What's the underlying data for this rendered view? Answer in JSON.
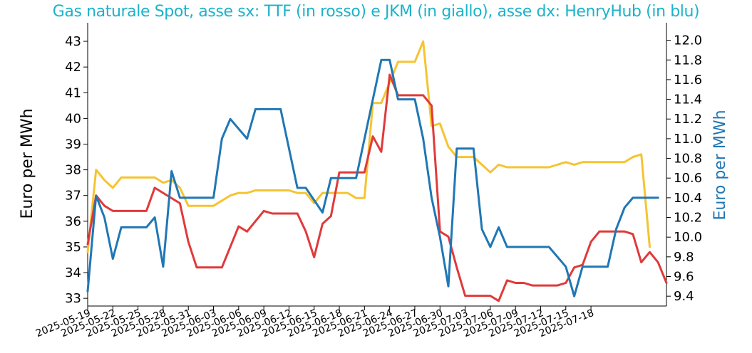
{
  "chart_data": {
    "type": "line",
    "title": "Gas naturale Spot, asse sx: TTF (in rosso) e JKM (in giallo), asse dx: HenryHub (in blu)",
    "ylabel_left": "Euro per MWh",
    "ylabel_right": "Euro per MWh",
    "ylim_left": [
      32.7,
      43.5
    ],
    "ylim_right": [
      9.3,
      12.12
    ],
    "yticks_left": [
      33,
      34,
      35,
      36,
      37,
      38,
      39,
      40,
      41,
      42,
      43
    ],
    "yticks_right": [
      "9.4",
      "9.6",
      "9.8",
      "10.0",
      "10.2",
      "10.4",
      "10.6",
      "10.8",
      "11.0",
      "11.2",
      "11.4",
      "11.6",
      "11.8",
      "12.0"
    ],
    "xticks": [
      "2025-05-19",
      "2025-05-22",
      "2025-05-25",
      "2025-05-28",
      "2025-05-31",
      "2025-06-03",
      "2025-06-06",
      "2025-06-09",
      "2025-06-12",
      "2025-06-15",
      "2025-06-18",
      "2025-06-21",
      "2025-06-24",
      "2025-06-27",
      "2025-06-30",
      "2025-07-03",
      "2025-07-06",
      "2025-07-09",
      "2025-07-12",
      "2025-07-15",
      "2025-07-18"
    ],
    "grid": false,
    "series": [
      {
        "name": "TTF",
        "axis": "left",
        "color": "#e03a3a",
        "points": [
          [
            "2025-05-19",
            35.1
          ],
          [
            "2025-05-20",
            37.0
          ],
          [
            "2025-05-21",
            36.6
          ],
          [
            "2025-05-22",
            36.4
          ],
          [
            "2025-05-23",
            36.4
          ],
          [
            "2025-05-26",
            36.4
          ],
          [
            "2025-05-27",
            37.3
          ],
          [
            "2025-05-30",
            36.7
          ],
          [
            "2025-05-31",
            35.2
          ],
          [
            "2025-06-01",
            34.2
          ],
          [
            "2025-06-04",
            34.2
          ],
          [
            "2025-06-06",
            35.8
          ],
          [
            "2025-06-07",
            35.6
          ],
          [
            "2025-06-09",
            36.4
          ],
          [
            "2025-06-10",
            36.3
          ],
          [
            "2025-06-13",
            36.3
          ],
          [
            "2025-06-14",
            35.6
          ],
          [
            "2025-06-15",
            34.6
          ],
          [
            "2025-06-16",
            35.9
          ],
          [
            "2025-06-17",
            36.2
          ],
          [
            "2025-06-18",
            37.9
          ],
          [
            "2025-06-21",
            37.9
          ],
          [
            "2025-06-22",
            39.3
          ],
          [
            "2025-06-23",
            38.7
          ],
          [
            "2025-06-24",
            41.7
          ],
          [
            "2025-06-25",
            40.9
          ],
          [
            "2025-06-28",
            40.9
          ],
          [
            "2025-06-29",
            40.5
          ],
          [
            "2025-06-30",
            35.6
          ],
          [
            "2025-07-01",
            35.4
          ],
          [
            "2025-07-02",
            34.2
          ],
          [
            "2025-07-03",
            33.1
          ],
          [
            "2025-07-06",
            33.1
          ],
          [
            "2025-07-07",
            32.9
          ],
          [
            "2025-07-08",
            33.7
          ],
          [
            "2025-07-09",
            33.6
          ],
          [
            "2025-07-10",
            33.6
          ],
          [
            "2025-07-11",
            33.5
          ],
          [
            "2025-07-14",
            33.5
          ],
          [
            "2025-07-15",
            33.6
          ],
          [
            "2025-07-16",
            34.2
          ],
          [
            "2025-07-17",
            34.3
          ],
          [
            "2025-07-18",
            35.2
          ],
          [
            "2025-07-19",
            35.6
          ],
          [
            "2025-07-22",
            35.6
          ],
          [
            "2025-07-23",
            35.5
          ],
          [
            "2025-07-24",
            34.4
          ],
          [
            "2025-07-25",
            34.8
          ],
          [
            "2025-07-26",
            34.4
          ],
          [
            "2025-07-27",
            33.6
          ]
        ]
      },
      {
        "name": "JKM",
        "axis": "left",
        "color": "#f5c431",
        "points": [
          [
            "2025-05-19",
            34.8
          ],
          [
            "2025-05-20",
            38.0
          ],
          [
            "2025-05-21",
            37.6
          ],
          [
            "2025-05-22",
            37.3
          ],
          [
            "2025-05-23",
            37.7
          ],
          [
            "2025-05-27",
            37.7
          ],
          [
            "2025-05-28",
            37.5
          ],
          [
            "2025-05-29",
            37.6
          ],
          [
            "2025-05-30",
            37.3
          ],
          [
            "2025-05-31",
            36.6
          ],
          [
            "2025-06-03",
            36.6
          ],
          [
            "2025-06-05",
            37.0
          ],
          [
            "2025-06-06",
            37.1
          ],
          [
            "2025-06-07",
            37.1
          ],
          [
            "2025-06-08",
            37.2
          ],
          [
            "2025-06-12",
            37.2
          ],
          [
            "2025-06-13",
            37.1
          ],
          [
            "2025-06-14",
            37.1
          ],
          [
            "2025-06-15",
            36.7
          ],
          [
            "2025-06-16",
            37.1
          ],
          [
            "2025-06-19",
            37.1
          ],
          [
            "2025-06-20",
            36.9
          ],
          [
            "2025-06-21",
            36.9
          ],
          [
            "2025-06-22",
            40.6
          ],
          [
            "2025-06-23",
            40.6
          ],
          [
            "2025-06-24",
            41.4
          ],
          [
            "2025-06-25",
            42.2
          ],
          [
            "2025-06-27",
            42.2
          ],
          [
            "2025-06-28",
            43.0
          ],
          [
            "2025-06-29",
            39.7
          ],
          [
            "2025-06-30",
            39.8
          ],
          [
            "2025-07-01",
            38.9
          ],
          [
            "2025-07-02",
            38.5
          ],
          [
            "2025-07-04",
            38.5
          ],
          [
            "2025-07-05",
            38.2
          ],
          [
            "2025-07-06",
            37.9
          ],
          [
            "2025-07-07",
            38.2
          ],
          [
            "2025-07-08",
            38.1
          ],
          [
            "2025-07-13",
            38.1
          ],
          [
            "2025-07-14",
            38.2
          ],
          [
            "2025-07-15",
            38.3
          ],
          [
            "2025-07-16",
            38.2
          ],
          [
            "2025-07-17",
            38.3
          ],
          [
            "2025-07-22",
            38.3
          ],
          [
            "2025-07-23",
            38.5
          ],
          [
            "2025-07-24",
            38.6
          ],
          [
            "2025-07-25",
            35.0
          ]
        ]
      },
      {
        "name": "HenryHub",
        "axis": "right",
        "color": "#2077b4",
        "points": [
          [
            "2025-05-19",
            9.45
          ],
          [
            "2025-05-20",
            10.42
          ],
          [
            "2025-05-21",
            10.2
          ],
          [
            "2025-05-22",
            9.78
          ],
          [
            "2025-05-23",
            10.1
          ],
          [
            "2025-05-26",
            10.1
          ],
          [
            "2025-05-27",
            10.2
          ],
          [
            "2025-05-28",
            9.7
          ],
          [
            "2025-05-29",
            10.67
          ],
          [
            "2025-05-30",
            10.4
          ],
          [
            "2025-06-03",
            10.4
          ],
          [
            "2025-06-04",
            11.0
          ],
          [
            "2025-06-05",
            11.2
          ],
          [
            "2025-06-07",
            11.0
          ],
          [
            "2025-06-08",
            11.3
          ],
          [
            "2025-06-11",
            11.3
          ],
          [
            "2025-06-13",
            10.5
          ],
          [
            "2025-06-14",
            10.5
          ],
          [
            "2025-06-16",
            10.25
          ],
          [
            "2025-06-17",
            10.6
          ],
          [
            "2025-06-20",
            10.6
          ],
          [
            "2025-06-22",
            11.4
          ],
          [
            "2025-06-23",
            11.8
          ],
          [
            "2025-06-24",
            11.8
          ],
          [
            "2025-06-25",
            11.4
          ],
          [
            "2025-06-27",
            11.4
          ],
          [
            "2025-06-28",
            11.0
          ],
          [
            "2025-06-29",
            10.4
          ],
          [
            "2025-06-30",
            10.0
          ],
          [
            "2025-07-01",
            9.5
          ],
          [
            "2025-07-02",
            10.9
          ],
          [
            "2025-07-03",
            10.9
          ],
          [
            "2025-07-04",
            10.9
          ],
          [
            "2025-07-05",
            10.08
          ],
          [
            "2025-07-06",
            9.9
          ],
          [
            "2025-07-07",
            10.1
          ],
          [
            "2025-07-08",
            9.9
          ],
          [
            "2025-07-13",
            9.9
          ],
          [
            "2025-07-15",
            9.7
          ],
          [
            "2025-07-16",
            9.4
          ],
          [
            "2025-07-17",
            9.7
          ],
          [
            "2025-07-19",
            9.7
          ],
          [
            "2025-07-20",
            9.7
          ],
          [
            "2025-07-21",
            10.08
          ],
          [
            "2025-07-22",
            10.3
          ],
          [
            "2025-07-23",
            10.4
          ],
          [
            "2025-07-26",
            10.4
          ]
        ]
      }
    ]
  }
}
